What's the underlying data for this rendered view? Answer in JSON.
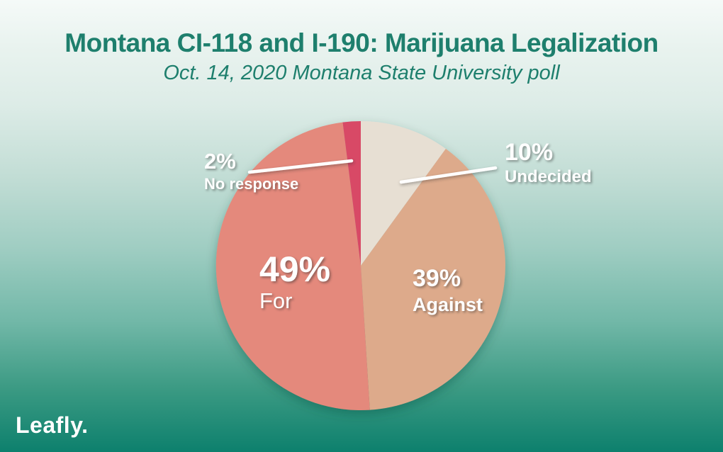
{
  "header": {
    "title": "Montana CI-118 and I-190: Marijuana Legalization",
    "subtitle": "Oct. 14, 2020 Montana State University poll"
  },
  "branding": {
    "logo_text": "Leafly."
  },
  "colors": {
    "heading_text": "#1e7f6d",
    "callout_text": "#ffffff",
    "background_top": "#f5faf8",
    "background_bottom": "#0d806d"
  },
  "chart_data": {
    "type": "pie",
    "title": "Montana CI-118 and I-190: Marijuana Legalization",
    "subtitle": "Oct. 14, 2020 Montana State University poll",
    "start_angle_deg": 0,
    "direction": "clockwise",
    "legend_position": "on-chart-callouts",
    "slices": [
      {
        "label": "Undecided",
        "value_pct": 10,
        "display_pct": "10%",
        "color": "#e7dfd3"
      },
      {
        "label": "Against",
        "value_pct": 39,
        "display_pct": "39%",
        "color": "#ddaa8b"
      },
      {
        "label": "For",
        "value_pct": 49,
        "display_pct": "49%",
        "color": "#e4897b"
      },
      {
        "label": "No response",
        "value_pct": 2,
        "display_pct": "2%",
        "color": "#d84a66"
      }
    ]
  }
}
